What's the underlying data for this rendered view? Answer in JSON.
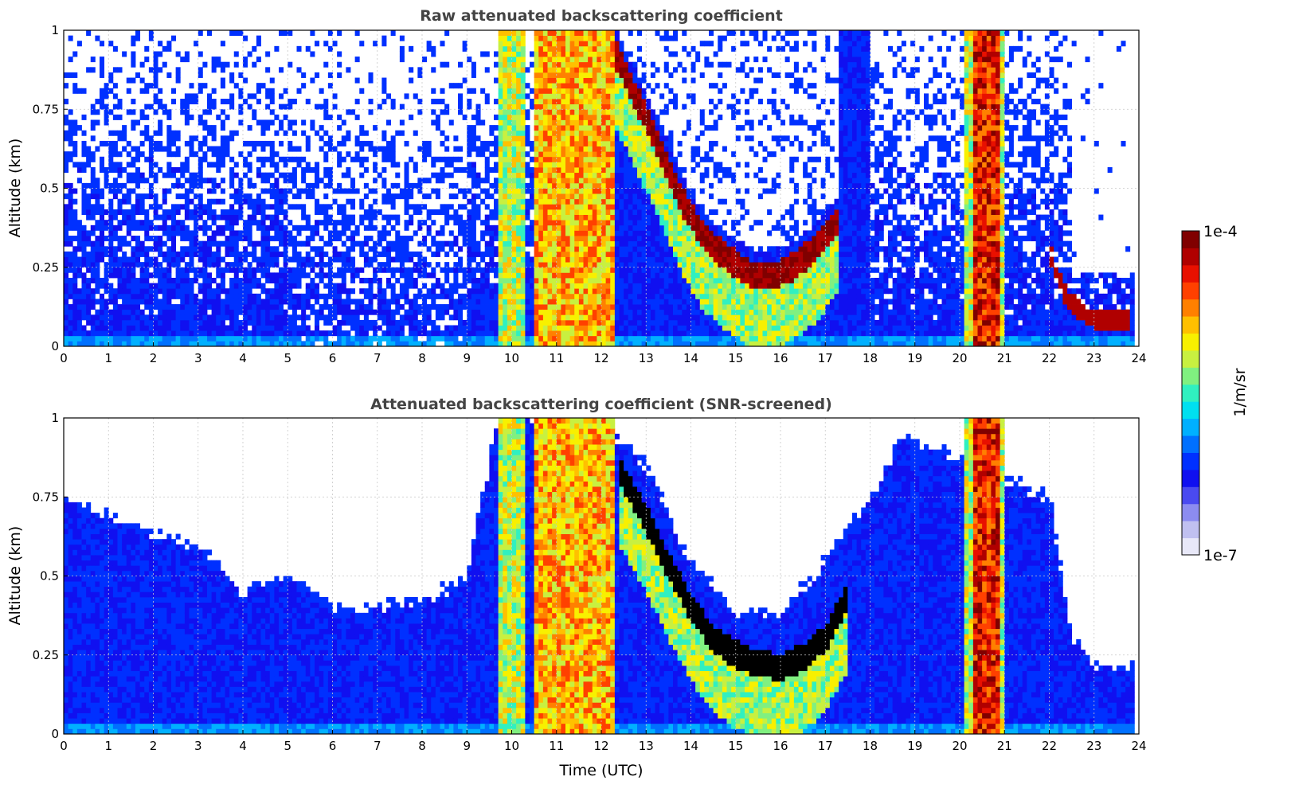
{
  "colorbar": {
    "max_label": "1e-4",
    "min_label": "1e-7",
    "unit_label": "1/m/sr",
    "colors": [
      "#e8e8f8",
      "#c0c0f0",
      "#8c8cf0",
      "#4a4af0",
      "#1010f0",
      "#0030ff",
      "#0070ff",
      "#00b0ff",
      "#00e0f0",
      "#30f0c0",
      "#80f080",
      "#c8f040",
      "#f8f000",
      "#ffc000",
      "#ff8000",
      "#ff4000",
      "#e81000",
      "#b00000",
      "#800000"
    ]
  },
  "chart_data": [
    {
      "type": "heatmap",
      "title": "Raw attenuated backscattering coefficient",
      "xlabel": "",
      "ylabel": "Altitude (km)",
      "xlim": [
        0,
        24
      ],
      "ylim": [
        0,
        1
      ],
      "xticks": [
        "0",
        "1",
        "2",
        "3",
        "4",
        "5",
        "6",
        "7",
        "8",
        "9",
        "10",
        "11",
        "12",
        "13",
        "14",
        "15",
        "16",
        "17",
        "18",
        "19",
        "20",
        "21",
        "22",
        "23",
        "24"
      ],
      "yticks": [
        "0",
        "0.25",
        "0.5",
        "0.75",
        "1"
      ],
      "grid": true,
      "colorscale": "log",
      "zlim": [
        1e-07,
        0.0001
      ],
      "zunit": "1/m/sr",
      "cloud_base_km": {
        "x": [
          12.3,
          12.8,
          13.3,
          13.8,
          14.3,
          14.8,
          15.3,
          15.8,
          16.3,
          16.8,
          17.3
        ],
        "y": [
          0.95,
          0.8,
          0.65,
          0.48,
          0.36,
          0.3,
          0.25,
          0.24,
          0.27,
          0.33,
          0.42
        ]
      },
      "late_layer_km": {
        "x": [
          22.0,
          22.4,
          22.8,
          23.2,
          23.8
        ],
        "y": [
          0.3,
          0.15,
          0.1,
          0.08,
          0.08
        ]
      },
      "strong_columns_utc": [
        [
          9.75,
          10.3
        ],
        [
          10.5,
          12.3
        ],
        [
          20.1,
          21.0
        ]
      ]
    },
    {
      "type": "heatmap",
      "title": "Attenuated backscattering coefficient (SNR-screened)",
      "xlabel": "Time (UTC)",
      "ylabel": "Altitude (km)",
      "xlim": [
        0,
        24
      ],
      "ylim": [
        0,
        1
      ],
      "xticks": [
        "0",
        "1",
        "2",
        "3",
        "4",
        "5",
        "6",
        "7",
        "8",
        "9",
        "10",
        "11",
        "12",
        "13",
        "14",
        "15",
        "16",
        "17",
        "18",
        "19",
        "20",
        "21",
        "22",
        "23",
        "24"
      ],
      "yticks": [
        "0",
        "0.25",
        "0.5",
        "0.75",
        "1"
      ],
      "grid": true,
      "colorscale": "log",
      "zlim": [
        1e-07,
        0.0001
      ],
      "zunit": "1/m/sr",
      "signal_top_km": {
        "x": [
          0,
          1,
          2,
          3,
          4,
          5,
          6,
          7,
          8,
          9,
          9.7,
          12,
          13,
          14,
          15,
          16,
          17,
          18,
          18.7,
          22,
          22.5,
          23,
          23.8
        ],
        "y": [
          0.75,
          0.7,
          0.63,
          0.6,
          0.45,
          0.5,
          0.4,
          0.4,
          0.42,
          0.5,
          1.0,
          1.0,
          0.85,
          0.55,
          0.38,
          0.38,
          0.55,
          0.75,
          0.95,
          0.75,
          0.3,
          0.22,
          0.22
        ]
      },
      "saturated_band_km": {
        "x": [
          12.4,
          13.0,
          13.5,
          14.0,
          14.5,
          15.0,
          15.5,
          16.0,
          16.5,
          17.0,
          17.5
        ],
        "y": [
          0.85,
          0.7,
          0.55,
          0.42,
          0.32,
          0.27,
          0.24,
          0.23,
          0.26,
          0.32,
          0.45
        ]
      },
      "strong_columns_utc": [
        [
          9.75,
          10.3
        ],
        [
          10.5,
          12.3
        ],
        [
          20.1,
          21.0
        ]
      ]
    }
  ]
}
